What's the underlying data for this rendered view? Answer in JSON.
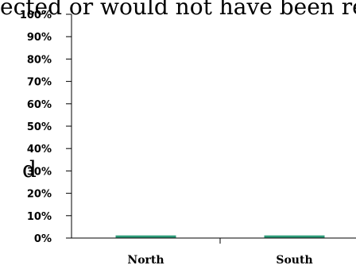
{
  "background_text": {
    "top_line": "ected or would not have been reject",
    "left_fragment": "d"
  },
  "chart_data": {
    "type": "bar",
    "categories": [
      "North",
      "South"
    ],
    "values": [
      1,
      1
    ],
    "ylim": [
      0,
      100
    ],
    "y_ticks": [
      "0%",
      "10%",
      "20%",
      "30%",
      "40%",
      "50%",
      "60%",
      "70%",
      "80%",
      "90%",
      "100%"
    ],
    "grid": false,
    "bar_color": "#2e9c7a"
  }
}
